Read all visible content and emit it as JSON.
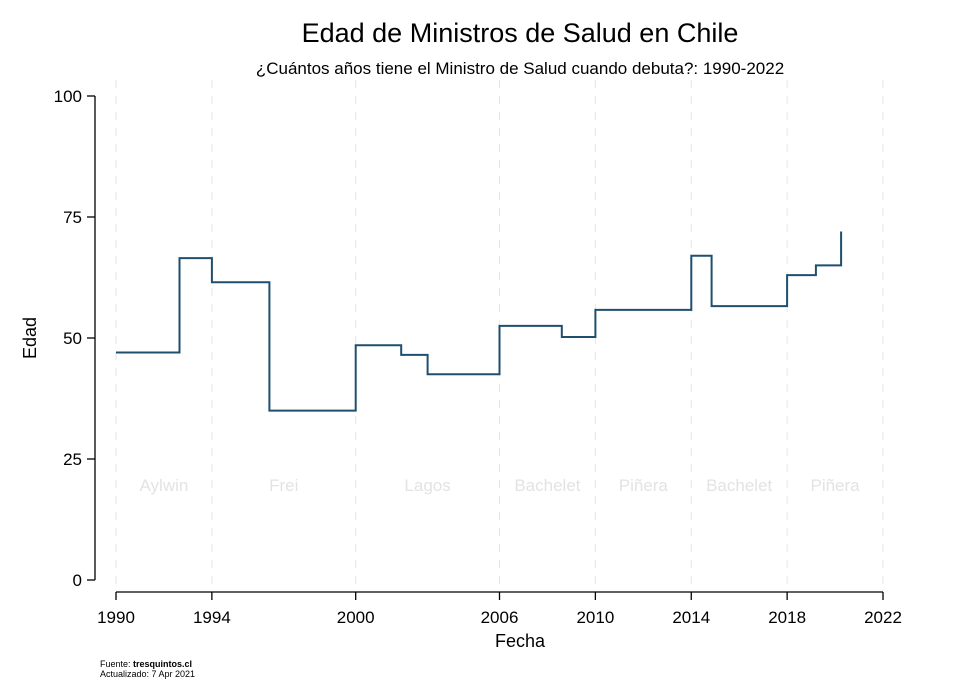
{
  "chart_data": {
    "type": "line",
    "step": true,
    "title": "Edad de Ministros de Salud en Chile",
    "subtitle": "¿Cuántos años tiene el Ministro de Salud cuando debuta?: 1990-2022",
    "xlabel": "Fecha",
    "ylabel": "Edad",
    "xlim": [
      1990,
      2022
    ],
    "ylim": [
      0,
      100
    ],
    "x_ticks": [
      1990,
      1994,
      2000,
      2006,
      2010,
      2014,
      2018,
      2022
    ],
    "y_ticks": [
      0,
      25,
      50,
      75,
      100
    ],
    "grid": "vertical dashed at x ticks",
    "line_color": "#1f4e6e",
    "series": [
      {
        "x": [
          1990.0,
          1992.65,
          1994.0,
          1996.4,
          2000.0,
          2001.9,
          2003.0,
          2006.0,
          2008.6,
          2010.0,
          2014.0,
          2014.85,
          2018.0,
          2019.2,
          2020.25,
          2020.25
        ],
        "y": [
          47,
          66.5,
          61.5,
          35,
          48.5,
          46.5,
          42.5,
          52.5,
          50.2,
          55.8,
          67,
          56.6,
          63,
          65,
          65,
          72
        ]
      }
    ],
    "periods": [
      {
        "label": "Aylwin",
        "center": 1992.0
      },
      {
        "label": "Frei",
        "center": 1997.0
      },
      {
        "label": "Lagos",
        "center": 2003.0
      },
      {
        "label": "Bachelet",
        "center": 2008.0
      },
      {
        "label": "Piñera",
        "center": 2012.0
      },
      {
        "label": "Bachelet",
        "center": 2016.0
      },
      {
        "label": "Piñera",
        "center": 2020.0
      }
    ]
  },
  "footer": {
    "source_label": "Fuente: ",
    "source_name": "tresquintos.cl",
    "updated": "Actualizado:  7 Apr 2021"
  }
}
